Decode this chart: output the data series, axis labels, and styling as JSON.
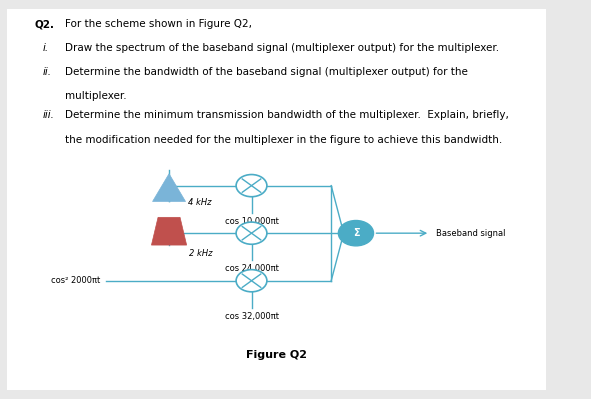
{
  "bg_color": "#e8e8e8",
  "white": "#ffffff",
  "title": "Q2.",
  "intro": "For the scheme shown in Figure Q2,",
  "item_i_label": "i.",
  "item_i_text": "Draw the spectrum of the baseband signal (multiplexer output) for the multiplexer.",
  "item_ii_label": "ii.",
  "item_ii_text1": "Determine the bandwidth of the baseband signal (multiplexer output) for the",
  "item_ii_text2": "multiplexer.",
  "item_iii_label": "iii.",
  "item_iii_text1": "Determine the minimum transmission bandwidth of the multiplexer.  Explain, briefly,",
  "item_iii_text2": "the modification needed for the multiplexer in the figure to achieve this bandwidth.",
  "figure_label": "Figure Q2",
  "tri1_color": "#7ab4d8",
  "tri2_color": "#c0504d",
  "line_color": "#4bacc6",
  "circle_fill": "#4bacc6",
  "mult_edge": "#4bacc6",
  "label_4khz": "4 kHz",
  "label_2khz": "2 kHz",
  "label_cos1": "cos 10,000πt",
  "label_cos2": "cos 24,000πt",
  "label_cos3": "cos 32,000πt",
  "label_cos4": "cos² 2000πt",
  "label_baseband": "Baseband signal",
  "fs_text": 7.5,
  "fs_small": 6.0,
  "fs_fig": 8.0
}
